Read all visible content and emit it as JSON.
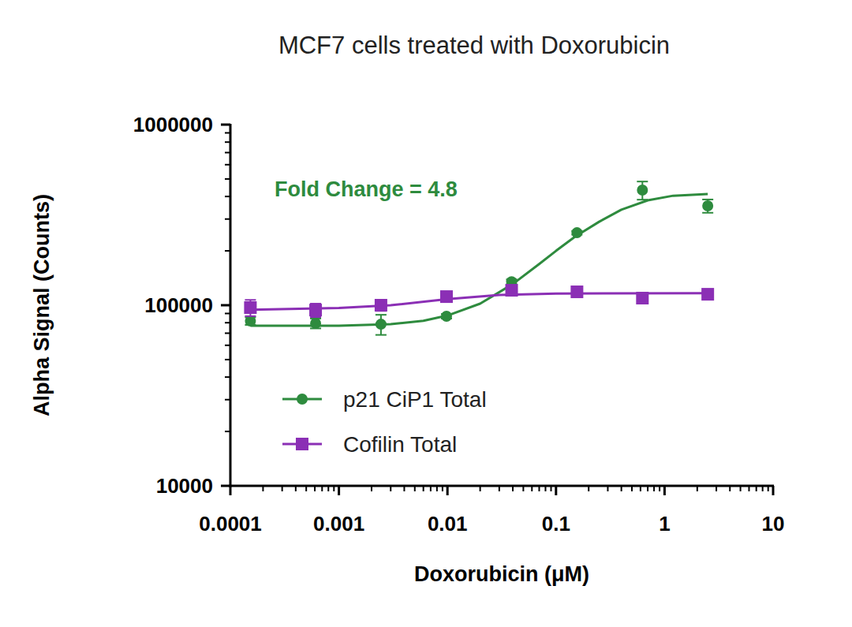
{
  "chart_data": {
    "type": "scatter",
    "title": "MCF7 cells treated with Doxorubicin",
    "x_label": "Doxorubicin (μM)",
    "y_label": "Alpha Signal (Counts)",
    "annotations": [
      {
        "text": "Fold Change = 4.8",
        "color": "#2e8b3e"
      }
    ],
    "x": [
      0.000153,
      0.00061,
      0.00244,
      0.0098,
      0.039,
      0.156,
      0.625,
      2.5
    ],
    "series": [
      {
        "name": "p21 CiP1 Total",
        "color": "#2e8b3e",
        "marker": "circle",
        "line_style": "solid",
        "values": [
          81800,
          79400,
          78500,
          86900,
          135000,
          252000,
          434000,
          355000
        ],
        "errors": [
          4000,
          5000,
          10000,
          2500,
          4000,
          6000,
          50000,
          30000
        ],
        "fit": {
          "x": [
            0.000153,
            0.001,
            0.003,
            0.006,
            0.01,
            0.02,
            0.04,
            0.07,
            0.1,
            0.15,
            0.25,
            0.4,
            0.7,
            1.2,
            2.5
          ],
          "values": [
            77000,
            77000,
            78500,
            82000,
            87700,
            102000,
            131000,
            169000,
            200000,
            240000,
            290000,
            338000,
            381000,
            404000,
            413000
          ]
        }
      },
      {
        "name": "Cofilin Total",
        "color": "#8b2fb5",
        "marker": "square",
        "line_style": "solid",
        "values": [
          97000,
          94000,
          100000,
          111600,
          121000,
          118600,
          109500,
          115000
        ],
        "errors": [
          10000,
          8000,
          7000,
          3000,
          3000,
          3000,
          3000,
          3000
        ],
        "fit": {
          "x": [
            0.000153,
            0.001,
            0.003,
            0.01,
            0.03,
            0.1,
            2.5
          ],
          "values": [
            94500,
            96500,
            100000,
            108000,
            114000,
            116000,
            116500
          ]
        }
      }
    ],
    "xlim": [
      0.0001,
      10
    ],
    "ylim": [
      10000,
      1000000
    ],
    "xticks": [
      0.0001,
      0.001,
      0.01,
      0.1,
      1,
      10
    ],
    "yticks": [
      10000,
      100000,
      1000000
    ],
    "log": true,
    "grid": false,
    "legend": "lower left"
  }
}
